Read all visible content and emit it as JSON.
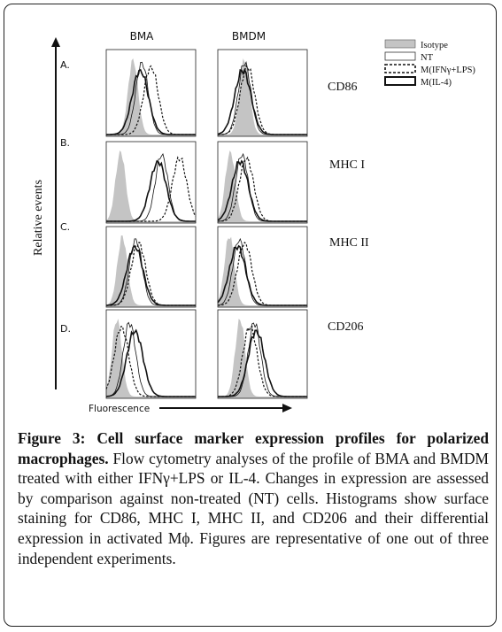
{
  "figure": {
    "column_headers": [
      "BMA",
      "BMDM"
    ],
    "row_letters": [
      "A.",
      "B.",
      "C.",
      "D."
    ],
    "row_markers": [
      "CD86",
      "MHC I",
      "MHC II",
      "CD206"
    ],
    "y_axis_label": "Relative events",
    "x_axis_label": "Fluorescence",
    "legend": [
      {
        "label": "Isotype",
        "style": "grey-fill"
      },
      {
        "label": "NT",
        "style": "thin-solid"
      },
      {
        "label": "M(IFNγ+LPS)",
        "style": "dashed"
      },
      {
        "label": "M(IL-4)",
        "style": "thick-solid"
      }
    ],
    "colors": {
      "isotype_fill": "#c4c4c4",
      "line": "#111111",
      "frame": "#222222"
    },
    "panel_order": [
      "BMA-CD86",
      "BMDM-CD86",
      "BMA-MHCI",
      "BMDM-MHCI",
      "BMA-MHCII",
      "BMDM-MHCII",
      "BMA-CD206",
      "BMDM-CD206"
    ]
  },
  "caption": {
    "title": "Figure 3: Cell surface marker expression profiles for polarized macrophages.",
    "body": "Flow cytometry analyses of the profile of BMA and BMDM treated with either IFNγ+LPS or IL-4. Changes in expression are assessed by comparison against non-treated (NT) cells. Histograms show surface staining for CD86, MHC I, MHC II, and CD206 and their differential expression in activated Mϕ. Figures are representative of one out of three independent experiments."
  }
}
